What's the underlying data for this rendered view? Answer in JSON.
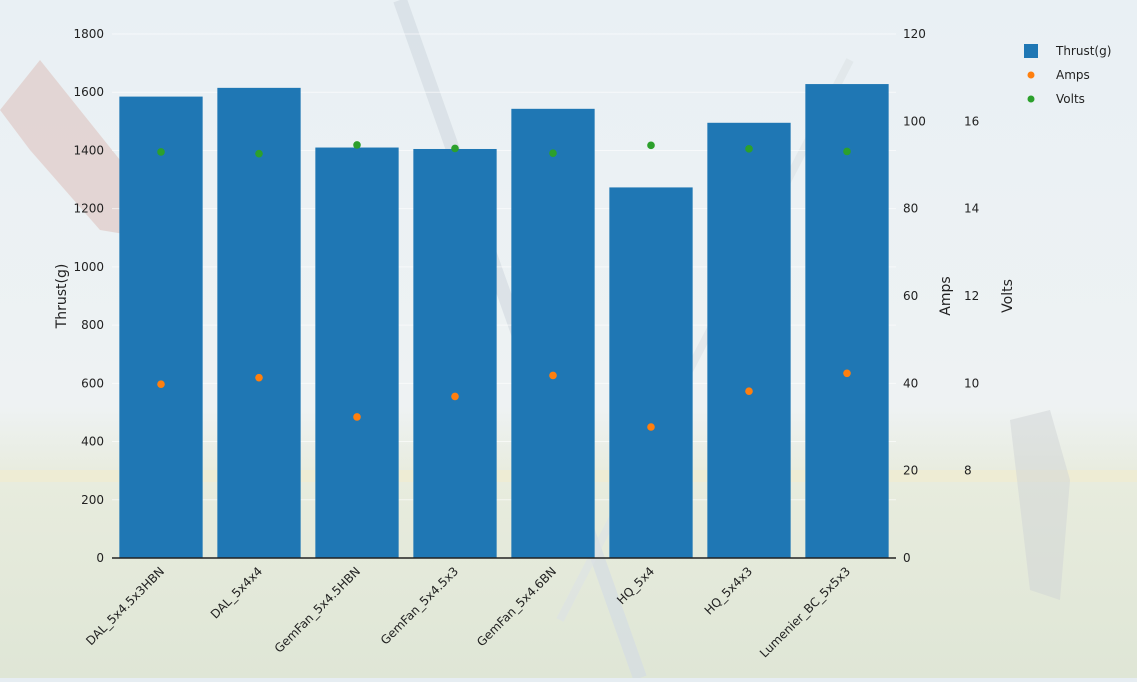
{
  "chart_data": {
    "type": "bar",
    "categories": [
      "DAL_5x4.5x3HBN",
      "DAL_5x4x4",
      "GemFan_5x4.5HBN",
      "GemFan_5x4.5x3",
      "GemFan_5x4.6BN",
      "HQ_5x4",
      "HQ_5x4x3",
      "Lumenier_BC_5x5x3"
    ],
    "series": [
      {
        "name": "Thrust(g)",
        "type": "bar",
        "axis": "left",
        "color": "#1f77b4",
        "values": [
          1585,
          1615,
          1410,
          1405,
          1543,
          1273,
          1495,
          1628
        ]
      },
      {
        "name": "Amps",
        "type": "scatter",
        "axis": "right1",
        "color": "#ff7f0e",
        "values": [
          39.8,
          41.3,
          32.3,
          37.0,
          41.8,
          30.0,
          38.2,
          42.3
        ]
      },
      {
        "name": "Volts",
        "type": "scatter",
        "axis": "right2",
        "color": "#2ca02c",
        "values": [
          15.3,
          15.26,
          15.46,
          15.38,
          15.27,
          15.45,
          15.37,
          15.31
        ]
      }
    ],
    "axes": {
      "left": {
        "title": "Thrust(g)",
        "range": [
          0,
          1800
        ],
        "ticks": [
          0,
          200,
          400,
          600,
          800,
          1000,
          1200,
          1400,
          1600,
          1800
        ]
      },
      "right1": {
        "title": "Amps",
        "range": [
          0,
          120
        ],
        "ticks": [
          0,
          20,
          40,
          60,
          80,
          100,
          120
        ]
      },
      "right2": {
        "title": "Volts",
        "range": [
          6,
          18
        ],
        "ticks": [
          8,
          10,
          12,
          14,
          16
        ]
      }
    },
    "grid": true,
    "legend": {
      "position": "top-right",
      "entries": [
        "Thrust(g)",
        "Amps",
        "Volts"
      ]
    }
  }
}
